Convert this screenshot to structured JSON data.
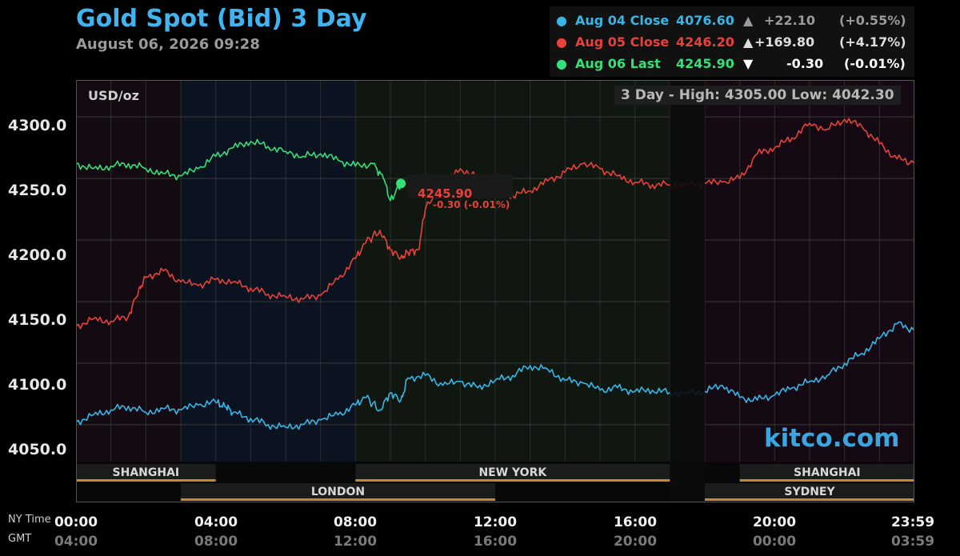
{
  "title": "Gold Spot (Bid) 3 Day",
  "timestamp": "August 06, 2026 09:28",
  "unit_label": "USD/oz",
  "high_low": "3 Day - High: 4305.00  Low: 4042.30",
  "watermark": "kitco.com",
  "legend": [
    {
      "label": "Aug 04 Close",
      "value": "4076.60",
      "arrow": "▲",
      "change": "+22.10",
      "pct": "(+0.55%)",
      "color": "#37b6e6"
    },
    {
      "label": "Aug 05 Close",
      "value": "4246.20",
      "arrow": "▲",
      "change": "+169.80",
      "pct": "(+4.17%)",
      "color": "#e8413a"
    },
    {
      "label": "Aug 06 Last",
      "value": "4245.90",
      "arrow": "▼",
      "change": "-0.30",
      "pct": "(-0.01%)",
      "color": "#33e07a"
    }
  ],
  "current_marker": {
    "price": "4245.90",
    "change": "-0.30 (-0.01%)"
  },
  "row_labels": {
    "ny": "NY Time",
    "gmt": "GMT"
  },
  "sessions": {
    "shanghai1": "SHANGHAI",
    "new_york": "NEW YORK",
    "shanghai2": "SHANGHAI",
    "london": "LONDON",
    "sydney": "SYDNEY"
  },
  "chart_data": {
    "type": "line",
    "title": "Gold Spot (Bid) 3 Day",
    "ylabel": "USD/oz",
    "ylim": [
      4020,
      4330
    ],
    "xlim": [
      0,
      24
    ],
    "yticks": [
      "4300.0",
      "4250.0",
      "4200.0",
      "4150.0",
      "4100.0",
      "4050.0"
    ],
    "ytick_values": [
      4300,
      4250,
      4200,
      4150,
      4100,
      4050
    ],
    "x_ticks_ny": [
      "00:00",
      "04:00",
      "08:00",
      "12:00",
      "16:00",
      "20:00",
      "23:59"
    ],
    "x_ticks_gmt": [
      "04:00",
      "08:00",
      "12:00",
      "16:00",
      "20:00",
      "00:00",
      "03:59"
    ],
    "x_tick_hours": [
      0,
      4,
      8,
      12,
      16,
      20,
      23.98
    ],
    "grid": true,
    "series": [
      {
        "name": "Aug 04 Close",
        "color": "#37b6e6",
        "x": [
          0,
          0.5,
          1,
          1.5,
          2,
          2.5,
          3,
          3.5,
          4,
          4.3,
          4.5,
          5,
          5.5,
          6,
          6.5,
          7,
          7.5,
          8,
          8.3,
          8.7,
          9,
          9.3,
          9.5,
          10,
          10.5,
          11,
          11.5,
          12,
          12.5,
          13,
          13.5,
          14,
          14.5,
          15,
          15.5,
          16,
          16.5,
          17,
          17.5,
          18,
          18.5,
          19,
          19.5,
          20,
          20.5,
          21,
          21.5,
          22,
          22.5,
          23,
          23.5,
          23.98
        ],
        "y": [
          4052,
          4058,
          4062,
          4065,
          4060,
          4063,
          4062,
          4066,
          4068,
          4064,
          4060,
          4055,
          4050,
          4048,
          4050,
          4054,
          4058,
          4066,
          4072,
          4062,
          4076,
          4070,
          4088,
          4090,
          4082,
          4085,
          4080,
          4086,
          4090,
          4098,
          4095,
          4086,
          4084,
          4078,
          4080,
          4077,
          4078,
          4076,
          4076,
          4077,
          4082,
          4072,
          4070,
          4074,
          4080,
          4085,
          4090,
          4100,
          4108,
          4120,
          4132,
          4127
        ]
      },
      {
        "name": "Aug 05 Close",
        "color": "#e8413a",
        "x": [
          0,
          0.5,
          1,
          1.5,
          1.8,
          2,
          2.5,
          3,
          3.5,
          4,
          4.5,
          5,
          5.5,
          6,
          6.5,
          7,
          7.5,
          8,
          8.3,
          8.7,
          9,
          9.3,
          9.5,
          9.8,
          10,
          10.5,
          11,
          11.5,
          12,
          12.5,
          13,
          13.5,
          14,
          14.5,
          15,
          15.5,
          16,
          16.5,
          17,
          17.5,
          18,
          18.5,
          19,
          19.5,
          20,
          20.5,
          21,
          21.5,
          22,
          22.5,
          23,
          23.5,
          23.98
        ],
        "y": [
          4130,
          4136,
          4134,
          4138,
          4160,
          4170,
          4175,
          4166,
          4163,
          4168,
          4166,
          4161,
          4156,
          4154,
          4152,
          4155,
          4168,
          4185,
          4198,
          4208,
          4192,
          4186,
          4190,
          4192,
          4225,
          4245,
          4258,
          4250,
          4240,
          4236,
          4240,
          4248,
          4255,
          4262,
          4258,
          4252,
          4247,
          4245,
          4245,
          4245,
          4246,
          4247,
          4250,
          4270,
          4275,
          4283,
          4295,
          4290,
          4298,
          4292,
          4278,
          4266,
          4263
        ]
      },
      {
        "name": "Aug 06 Last",
        "color": "#33e07a",
        "x": [
          0,
          0.5,
          1,
          1.5,
          2,
          2.5,
          3,
          3.5,
          4,
          4.5,
          5,
          5.5,
          6,
          6.5,
          7,
          7.5,
          8,
          8.5,
          8.8,
          9,
          9.3
        ],
        "y": [
          4262,
          4258,
          4260,
          4262,
          4258,
          4254,
          4252,
          4258,
          4268,
          4275,
          4280,
          4276,
          4272,
          4268,
          4270,
          4265,
          4260,
          4262,
          4250,
          4232,
          4245.9
        ]
      }
    ],
    "sessions": [
      {
        "name": "SHANGHAI",
        "start": 0,
        "end": 4,
        "row": 1
      },
      {
        "name": "NEW YORK",
        "start": 8,
        "end": 17,
        "row": 1
      },
      {
        "name": "SHANGHAI",
        "start": 19,
        "end": 24,
        "row": 1
      },
      {
        "name": "LONDON",
        "start": 3,
        "end": 12,
        "row": 2
      },
      {
        "name": "SYDNEY",
        "start": 18,
        "end": 24,
        "row": 2
      }
    ],
    "closed_period": {
      "start": 17,
      "end": 18
    }
  }
}
